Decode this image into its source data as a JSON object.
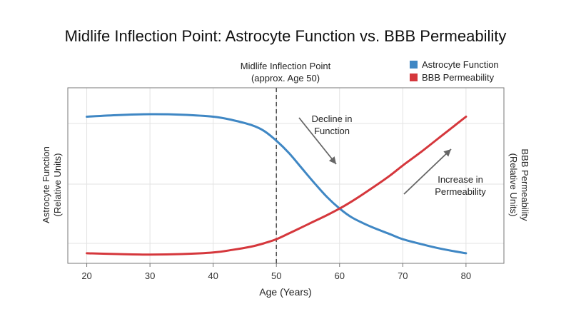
{
  "title": "Midlife Inflection Point: Astrocyte Function vs. BBB Permeability",
  "inflection_label": {
    "line1": "Midlife Inflection Point",
    "line2": "(approx. Age 50)"
  },
  "legend": [
    {
      "name": "Astrocyte Function",
      "color": "#3f87c4"
    },
    {
      "name": "BBB Permeability",
      "color": "#d5373c"
    }
  ],
  "ylabel_left": {
    "line1": "Astrocyte Function",
    "line2": "(Relative Units)"
  },
  "ylabel_right": {
    "line1": "BBB Permeability",
    "line2": "(Relative Units)"
  },
  "xlabel": "Age (Years)",
  "annotations": {
    "decline": {
      "line1": "Decline in",
      "line2": "Function"
    },
    "increase": {
      "line1": "Increase in",
      "line2": "Permeability"
    }
  },
  "chart_data": {
    "type": "line",
    "title": "Midlife Inflection Point: Astrocyte Function vs. BBB Permeability",
    "xlabel": "Age (Years)",
    "ylabel": "Astrocyte Function (Relative Units)",
    "ylabel_right": "BBB Permeability (Relative Units)",
    "x_ticks": [
      20,
      30,
      40,
      50,
      60,
      70,
      80
    ],
    "xlim": [
      17,
      86
    ],
    "ylim": [
      0,
      10
    ],
    "y_ticks_labeled": false,
    "grid": true,
    "legend_position": "top-right",
    "series": [
      {
        "name": "Astrocyte Function",
        "color": "#3f87c4",
        "x": [
          20,
          25,
          30,
          35,
          40,
          43,
          46,
          48,
          50,
          52,
          54,
          56,
          58,
          60,
          62,
          65,
          68,
          70,
          74,
          77,
          80
        ],
        "y": [
          8.6,
          8.7,
          8.75,
          8.72,
          8.6,
          8.4,
          8.1,
          7.75,
          7.15,
          6.4,
          5.5,
          4.6,
          3.75,
          3.05,
          2.5,
          1.95,
          1.5,
          1.2,
          0.8,
          0.55,
          0.35
        ]
      },
      {
        "name": "BBB Permeability",
        "color": "#d5373c",
        "x": [
          20,
          25,
          30,
          35,
          40,
          43,
          46,
          48,
          50,
          52,
          55,
          58,
          60,
          62,
          65,
          68,
          70,
          73,
          76,
          78,
          80
        ],
        "y": [
          0.35,
          0.3,
          0.27,
          0.3,
          0.4,
          0.55,
          0.75,
          0.95,
          1.2,
          1.55,
          2.1,
          2.65,
          3.05,
          3.5,
          4.25,
          5.05,
          5.65,
          6.5,
          7.4,
          8.0,
          8.6
        ]
      }
    ],
    "inflection_x": 50,
    "annotations": [
      "Decline in Function",
      "Increase in Permeability"
    ]
  }
}
